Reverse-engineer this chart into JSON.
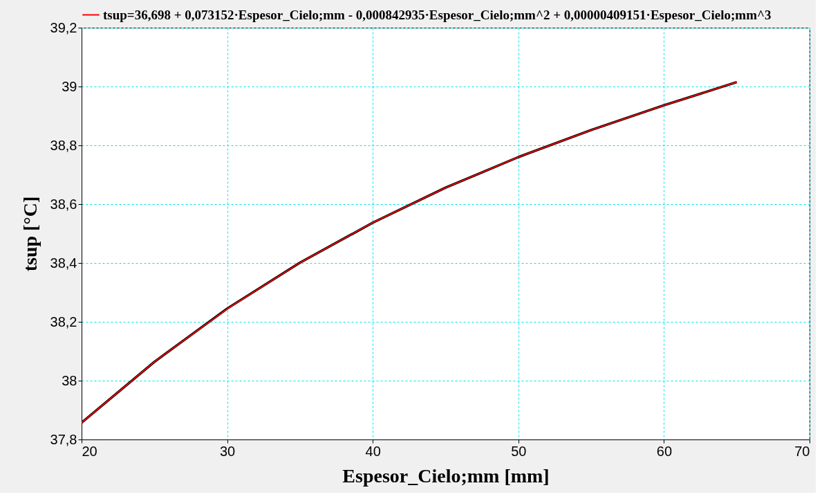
{
  "chart_data": {
    "type": "line",
    "xlabel": "Espesor_Cielo;mm  [mm]",
    "ylabel": "tsup  [°C]",
    "x": [
      20,
      25,
      30,
      35,
      40,
      45,
      50,
      55,
      60,
      65
    ],
    "series": [
      {
        "color": "#000000",
        "values": [
          37.857,
          38.064,
          38.245,
          38.401,
          38.537,
          38.656,
          38.76,
          38.852,
          38.936,
          39.015
        ]
      },
      {
        "name": "tsup=36,698 + 0,073152·Espesor_Cielo;mm - 0,000842935·Espesor_Cielo;mm^2 + 0,00000409151·Espesor_Cielo;mm^3",
        "color": "#ff0000",
        "values": [
          37.857,
          38.064,
          38.244,
          38.401,
          38.537,
          38.656,
          38.76,
          38.852,
          38.936,
          39.015
        ]
      }
    ],
    "xlim": [
      20,
      70
    ],
    "xticks": [
      20,
      30,
      40,
      50,
      60,
      70
    ],
    "ylim": [
      37.8,
      39.2
    ],
    "yticks": [
      {
        "value": 37.8,
        "label": "37,8"
      },
      38,
      {
        "value": 38.2,
        "label": "38,2"
      },
      {
        "value": 38.4,
        "label": "38,4"
      },
      {
        "value": 38.6,
        "label": "38,6"
      },
      {
        "value": 38.8,
        "label": "38,8"
      },
      39,
      {
        "value": 39.2,
        "label": "39,2"
      }
    ],
    "grid": true,
    "legend": "top",
    "marker": "none",
    "line_style": "solid"
  }
}
